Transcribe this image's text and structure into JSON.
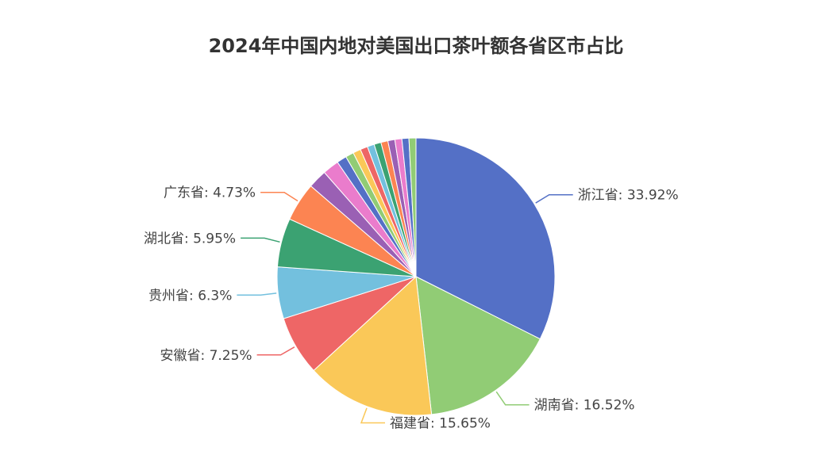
{
  "chart_data": {
    "type": "pie",
    "title": "2024年中国内地对美国出口茶叶额各省区市占比",
    "slices": [
      {
        "name": "浙江省",
        "value": 33.92,
        "color": "#5470c6",
        "label": "浙江省: 33.92%"
      },
      {
        "name": "湖南省",
        "value": 16.52,
        "color": "#91cc75",
        "label": "湖南省: 16.52%"
      },
      {
        "name": "福建省",
        "value": 15.65,
        "color": "#fac858",
        "label": "福建省: 15.65%"
      },
      {
        "name": "安徽省",
        "value": 7.25,
        "color": "#ee6666",
        "label": "安徽省: 7.25%"
      },
      {
        "name": "贵州省",
        "value": 6.3,
        "color": "#73c0de",
        "label": "贵州省: 6.3%"
      },
      {
        "name": "湖北省",
        "value": 5.95,
        "color": "#3ba272",
        "label": "湖北省: 5.95%"
      },
      {
        "name": "广东省",
        "value": 4.73,
        "color": "#fc8452",
        "label": "广东省: 4.73%"
      },
      {
        "name": "",
        "value": 2.3,
        "color": "#9a60b4",
        "label": ""
      },
      {
        "name": "",
        "value": 2.0,
        "color": "#ea7ccc",
        "label": ""
      },
      {
        "name": "",
        "value": 1.2,
        "color": "#5470c6",
        "label": ""
      },
      {
        "name": "",
        "value": 1.0,
        "color": "#91cc75",
        "label": ""
      },
      {
        "name": "",
        "value": 0.95,
        "color": "#fac858",
        "label": ""
      },
      {
        "name": "",
        "value": 0.9,
        "color": "#ee6666",
        "label": ""
      },
      {
        "name": "",
        "value": 0.85,
        "color": "#73c0de",
        "label": ""
      },
      {
        "name": "",
        "value": 0.85,
        "color": "#3ba272",
        "label": ""
      },
      {
        "name": "",
        "value": 0.85,
        "color": "#fc8452",
        "label": ""
      },
      {
        "name": "",
        "value": 0.85,
        "color": "#9a60b4",
        "label": ""
      },
      {
        "name": "",
        "value": 0.85,
        "color": "#ea7ccc",
        "label": ""
      },
      {
        "name": "",
        "value": 0.85,
        "color": "#5470c6",
        "label": ""
      },
      {
        "name": "",
        "value": 0.85,
        "color": "#91cc75",
        "label": ""
      }
    ]
  }
}
